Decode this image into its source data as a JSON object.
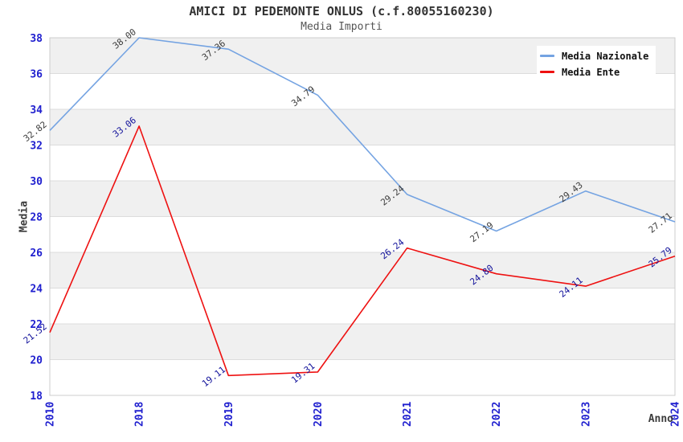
{
  "chart_data": {
    "type": "line",
    "title": "AMICI DI PEDEMONTE ONLUS (c.f.80055160230)",
    "subtitle": "Media Importi",
    "xlabel": "Anno",
    "ylabel": "Media",
    "categories": [
      "2010",
      "2018",
      "2019",
      "2020",
      "2021",
      "2022",
      "2023",
      "2024"
    ],
    "series": [
      {
        "name": "Media Nazionale",
        "color": "#74a3e2",
        "label_color": "#3c3c3c",
        "values": [
          32.82,
          38.0,
          37.36,
          34.79,
          29.24,
          27.19,
          29.43,
          27.71
        ]
      },
      {
        "name": "Media Ente",
        "color": "#ee1111",
        "label_color": "#12129b",
        "values": [
          21.52,
          33.06,
          19.11,
          19.31,
          26.24,
          24.8,
          24.11,
          25.79
        ]
      }
    ],
    "ylim": [
      18,
      38
    ],
    "ytick_step": 2,
    "value_decimals": 2,
    "legend_position": "top-right",
    "grid": "horizontal-bands",
    "colors": {
      "tick_label": "#2020cf",
      "axis_title": "#3c3c3c",
      "band": "#f0f0f0",
      "plot_border": "#cccccc",
      "gridline": "#dcdcdc",
      "background": "#ffffff"
    }
  }
}
